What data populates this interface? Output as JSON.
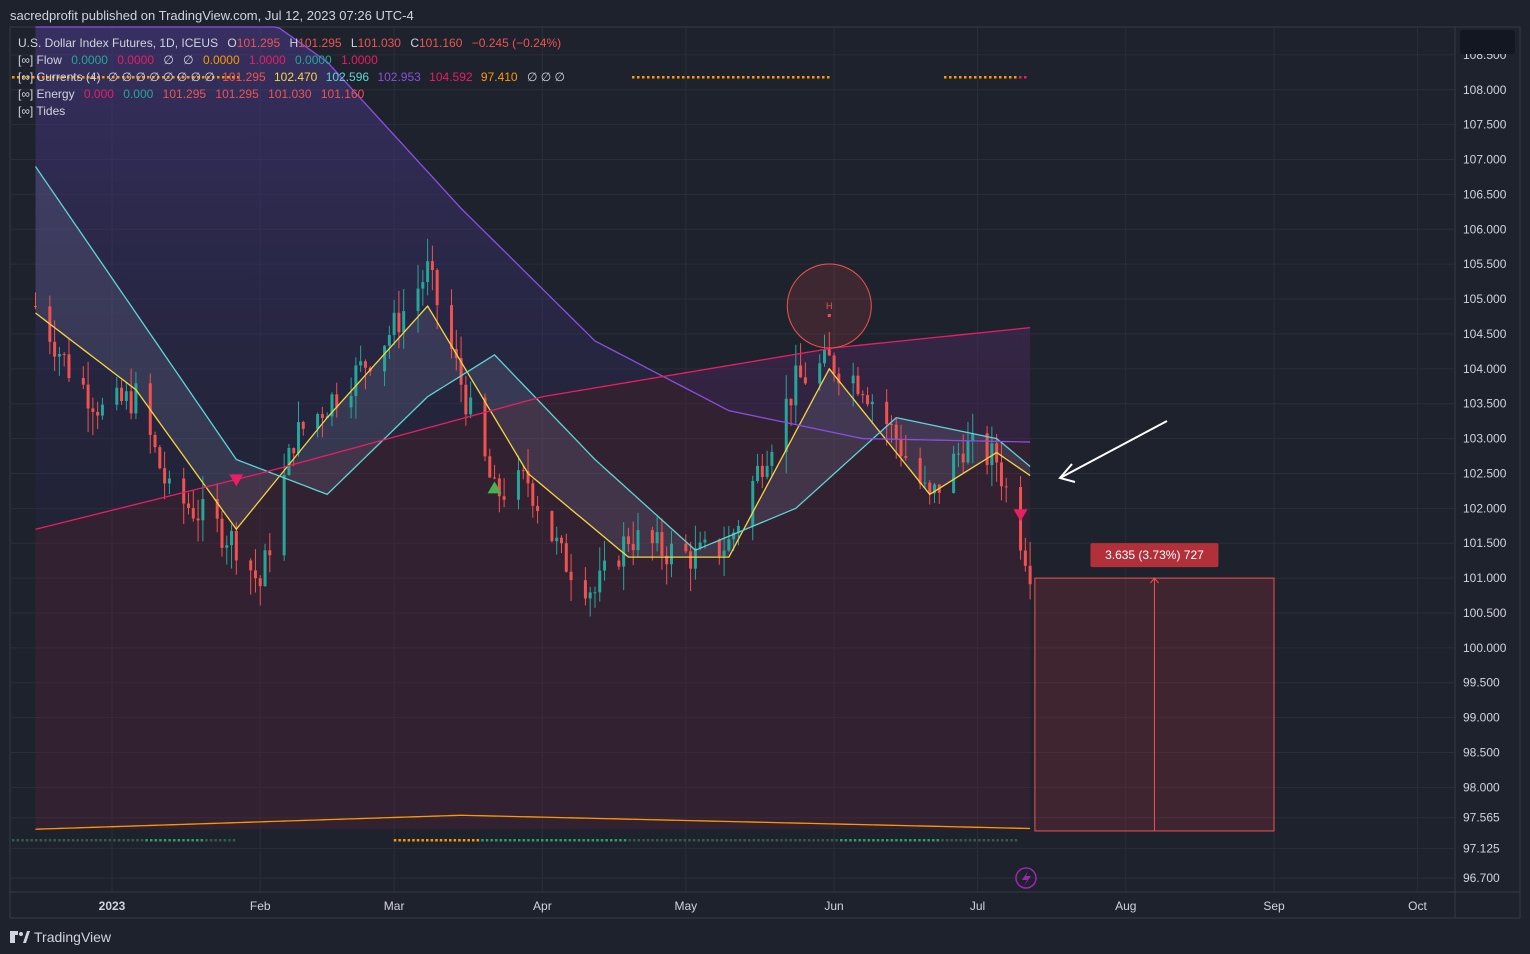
{
  "header": {
    "publisher_line": "sacredprofit published on TradingView.com, Jul 12, 2023 07:26 UTC-4"
  },
  "legend": {
    "symbol_line": {
      "name": "U.S. Dollar Index Futures, 1D, ICEUS",
      "o_label": "O",
      "o": "101.295",
      "h_label": "H",
      "h": "101.295",
      "l_label": "L",
      "l": "101.030",
      "c_label": "C",
      "c": "101.160",
      "change": "−0.245 (−0.24%)"
    },
    "flow": {
      "label": "[∞] Flow",
      "v1": "0.0000",
      "v2": "0.0000",
      "n1": "∅",
      "n2": "∅",
      "v3": "0.0000",
      "v4": "1.0000",
      "v5": "0.0000",
      "v6": "1.0000"
    },
    "currents": {
      "label": "[∞] Currents (4)",
      "nulls": "∅ ∅ ∅ ∅ ∅ ∅ ∅ ∅",
      "v1": "101.295",
      "v2": "102.470",
      "v3": "102.596",
      "v4": "102.953",
      "v5": "104.592",
      "v6": "97.410",
      "nulls2": "∅ ∅ ∅"
    },
    "energy": {
      "label": "[∞] Energy",
      "v1": "0.000",
      "v2": "0.000",
      "v3": "101.295",
      "v4": "101.295",
      "v5": "101.030",
      "v6": "101.160"
    },
    "tides": {
      "label": "[∞] Tides"
    }
  },
  "footer": {
    "brand": "TradingView"
  },
  "colors": {
    "background": "#1e222d",
    "up": "#26a69a",
    "down": "#ef5350",
    "label_red": "#b2303a",
    "yellow_ma": "#f5d742",
    "cyan_ma": "#5ed5d5",
    "purple_ma": "#8a4fe0",
    "pink_ma": "#e91e63",
    "orange_line": "#ff9800"
  },
  "chart_data": {
    "type": "candlestick",
    "x_axis_labels": [
      "2023",
      "Feb",
      "Mar",
      "Apr",
      "May",
      "Jun",
      "Jul",
      "Aug",
      "Sep",
      "Oct"
    ],
    "y_axis_labels": [
      "108.500",
      "108.000",
      "107.500",
      "107.000",
      "106.500",
      "106.000",
      "105.500",
      "105.000",
      "104.500",
      "104.000",
      "103.500",
      "103.000",
      "102.500",
      "102.000",
      "101.500",
      "101.000",
      "100.500",
      "100.000",
      "99.500",
      "99.000",
      "98.500",
      "98.000",
      "97.565",
      "97.125",
      "96.700"
    ],
    "ylim": [
      96.5,
      108.9
    ],
    "price_path": [
      [
        "2022-12-16",
        104.9
      ],
      [
        "2022-12-23",
        104.0
      ],
      [
        "2022-12-30",
        103.4
      ],
      [
        "2023-01-06",
        103.6
      ],
      [
        "2023-01-13",
        102.2
      ],
      [
        "2023-01-20",
        101.9
      ],
      [
        "2023-01-27",
        101.5
      ],
      [
        "2023-02-01",
        100.9
      ],
      [
        "2023-02-08",
        103.0
      ],
      [
        "2023-02-15",
        103.5
      ],
      [
        "2023-02-22",
        104.0
      ],
      [
        "2023-03-01",
        104.6
      ],
      [
        "2023-03-08",
        105.4
      ],
      [
        "2023-03-15",
        103.8
      ],
      [
        "2023-03-22",
        102.2
      ],
      [
        "2023-03-29",
        102.4
      ],
      [
        "2023-04-05",
        101.3
      ],
      [
        "2023-04-12",
        100.8
      ],
      [
        "2023-04-19",
        101.6
      ],
      [
        "2023-04-26",
        101.4
      ],
      [
        "2023-05-03",
        101.3
      ],
      [
        "2023-05-10",
        101.5
      ],
      [
        "2023-05-17",
        102.7
      ],
      [
        "2023-05-24",
        103.8
      ],
      [
        "2023-05-31",
        104.1
      ],
      [
        "2023-06-07",
        103.8
      ],
      [
        "2023-06-14",
        103.0
      ],
      [
        "2023-06-21",
        102.1
      ],
      [
        "2023-06-28",
        102.9
      ],
      [
        "2023-07-05",
        102.7
      ],
      [
        "2023-07-12",
        101.16
      ]
    ],
    "moving_averages": [
      {
        "color_key": "yellow_ma",
        "points": [
          [
            "2022-12-16",
            104.8
          ],
          [
            "2023-01-06",
            103.7
          ],
          [
            "2023-01-27",
            101.7
          ],
          [
            "2023-02-15",
            103.3
          ],
          [
            "2023-03-08",
            104.9
          ],
          [
            "2023-03-29",
            102.5
          ],
          [
            "2023-04-19",
            101.3
          ],
          [
            "2023-05-10",
            101.3
          ],
          [
            "2023-05-31",
            104.0
          ],
          [
            "2023-06-21",
            102.2
          ],
          [
            "2023-07-05",
            102.8
          ],
          [
            "2023-07-12",
            102.47
          ]
        ]
      },
      {
        "color_key": "cyan_ma",
        "points": [
          [
            "2022-12-16",
            106.9
          ],
          [
            "2023-01-06",
            104.8
          ],
          [
            "2023-01-27",
            102.7
          ],
          [
            "2023-02-15",
            102.2
          ],
          [
            "2023-03-08",
            103.6
          ],
          [
            "2023-03-22",
            104.2
          ],
          [
            "2023-04-12",
            102.7
          ],
          [
            "2023-05-03",
            101.4
          ],
          [
            "2023-05-24",
            102.0
          ],
          [
            "2023-06-14",
            103.3
          ],
          [
            "2023-07-05",
            103.0
          ],
          [
            "2023-07-12",
            102.6
          ]
        ]
      },
      {
        "color_key": "purple_ma",
        "points": [
          [
            "2022-12-16",
            110.5
          ],
          [
            "2023-01-13",
            110.0
          ],
          [
            "2023-02-15",
            108.4
          ],
          [
            "2023-03-15",
            106.3
          ],
          [
            "2023-04-12",
            104.4
          ],
          [
            "2023-05-10",
            103.4
          ],
          [
            "2023-06-07",
            103.0
          ],
          [
            "2023-07-12",
            102.95
          ]
        ]
      },
      {
        "color_key": "pink_ma",
        "points": [
          [
            "2022-12-16",
            101.7
          ],
          [
            "2023-02-01",
            102.5
          ],
          [
            "2023-04-01",
            103.6
          ],
          [
            "2023-06-01",
            104.3
          ],
          [
            "2023-07-12",
            104.59
          ]
        ]
      },
      {
        "color_key": "orange_line",
        "points": [
          [
            "2022-12-16",
            97.4
          ],
          [
            "2023-03-15",
            97.6
          ],
          [
            "2023-07-12",
            97.41
          ]
        ]
      }
    ],
    "markers": [
      {
        "type": "sell-triangle",
        "date": "2023-01-27",
        "price": 102.4
      },
      {
        "type": "buy-triangle",
        "date": "2023-03-22",
        "price": 102.3
      },
      {
        "type": "sell-triangle",
        "date": "2023-07-10",
        "price": 101.9
      }
    ],
    "circle_annotation": {
      "date": "2023-05-31",
      "price": 104.9,
      "label": "H"
    },
    "measure_box": {
      "label": "3.635 (3.73%) 727",
      "date_start": "2023-07-13",
      "date_end": "2023-09-01",
      "price_top": 101.0,
      "price_bottom": 97.375
    }
  }
}
